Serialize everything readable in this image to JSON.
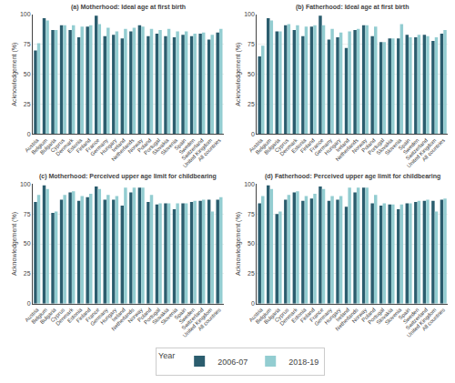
{
  "chart_data": [
    {
      "type": "bar",
      "title": "(a) Motherhood: Ideal age at first birth",
      "ylabel": "Acknowledgement (%)",
      "categories": [
        "Austria",
        "Belgium",
        "Bulgaria",
        "Cyprus",
        "Denmark",
        "Estonia",
        "Finland",
        "France",
        "Germany",
        "Hungary",
        "Ireland",
        "Netherlands",
        "Norway",
        "Poland",
        "Portugal",
        "Slovakia",
        "Slovenia",
        "Spain",
        "Sweden",
        "Switzerland",
        "United Kingdom",
        "All countries"
      ],
      "series": [
        {
          "name": "2006-07",
          "color": "#2b5d6e",
          "values": [
            70,
            97,
            87,
            91,
            87,
            81,
            90,
            99,
            82,
            83,
            80,
            86,
            91,
            82,
            84,
            82,
            81,
            83,
            82,
            84,
            79,
            85
          ]
        },
        {
          "name": "2018-19",
          "color": "#93cdd1",
          "values": [
            76,
            95,
            87,
            91,
            91,
            90,
            91,
            92,
            89,
            86,
            88,
            89,
            90,
            88,
            87,
            88,
            86,
            86,
            84,
            85,
            83,
            88
          ]
        }
      ],
      "ylim": [
        0,
        100
      ],
      "yticks": [
        0,
        25,
        50,
        75,
        100
      ],
      "grid": true
    },
    {
      "type": "bar",
      "title": "(b) Fatherhood: Ideal age at first birth",
      "ylabel": "Acknowledgement (%)",
      "categories": [
        "Austria",
        "Belgium",
        "Bulgaria",
        "Cyprus",
        "Denmark",
        "Estonia",
        "Finland",
        "France",
        "Germany",
        "Hungary",
        "Ireland",
        "Netherlands",
        "Norway",
        "Poland",
        "Portugal",
        "Slovakia",
        "Slovenia",
        "Spain",
        "Sweden",
        "Switzerland",
        "United Kingdom",
        "All countries"
      ],
      "series": [
        {
          "name": "2006-07",
          "color": "#2b5d6e",
          "values": [
            65,
            97,
            86,
            91,
            87,
            82,
            90,
            99,
            79,
            81,
            72,
            87,
            91,
            82,
            77,
            80,
            80,
            83,
            81,
            83,
            78,
            84
          ]
        },
        {
          "name": "2018-19",
          "color": "#93cdd1",
          "values": [
            74,
            95,
            86,
            92,
            91,
            90,
            91,
            91,
            88,
            85,
            86,
            88,
            91,
            90,
            77,
            80,
            92,
            81,
            83,
            82,
            81,
            87
          ]
        }
      ],
      "ylim": [
        0,
        100
      ],
      "yticks": [
        0,
        25,
        50,
        75,
        100
      ],
      "grid": true
    },
    {
      "type": "bar",
      "title": "(c) Motherhood: Perceived upper age limit for childbearing",
      "ylabel": "Acknowledgement (%)",
      "categories": [
        "Austria",
        "Belgium",
        "Bulgaria",
        "Cyprus",
        "Denmark",
        "Estonia",
        "Finland",
        "France",
        "Germany",
        "Hungary",
        "Ireland",
        "Netherlands",
        "Norway",
        "Poland",
        "Portugal",
        "Slovakia",
        "Slovenia",
        "Spain",
        "Sweden",
        "Switzerland",
        "United Kingdom",
        "All countries"
      ],
      "series": [
        {
          "name": "2006-07",
          "color": "#2b5d6e",
          "values": [
            85,
            99,
            76,
            87,
            93,
            86,
            89,
            98,
            87,
            87,
            82,
            93,
            97,
            85,
            83,
            84,
            79,
            84,
            85,
            86,
            87,
            87
          ]
        },
        {
          "name": "2018-19",
          "color": "#93cdd1",
          "values": [
            91,
            96,
            77,
            91,
            94,
            90,
            92,
            96,
            91,
            90,
            97,
            97,
            97,
            91,
            84,
            84,
            84,
            84,
            86,
            87,
            77,
            89
          ]
        }
      ],
      "ylim": [
        0,
        100
      ],
      "yticks": [
        0,
        25,
        50,
        75,
        100
      ],
      "grid": true
    },
    {
      "type": "bar",
      "title": "(d) Fatherhood: Perceived upper age limit for childbearing",
      "ylabel": "Acknowledgement (%)",
      "categories": [
        "Austria",
        "Belgium",
        "Bulgaria",
        "Cyprus",
        "Denmark",
        "Estonia",
        "Finland",
        "France",
        "Germany",
        "Hungary",
        "Ireland",
        "Netherlands",
        "Norway",
        "Poland",
        "Portugal",
        "Slovakia",
        "Slovenia",
        "Spain",
        "Sweden",
        "Switzerland",
        "United Kingdom",
        "All countries"
      ],
      "series": [
        {
          "name": "2006-07",
          "color": "#2b5d6e",
          "values": [
            84,
            99,
            75,
            87,
            93,
            86,
            88,
            98,
            86,
            87,
            81,
            93,
            97,
            84,
            82,
            83,
            79,
            84,
            85,
            86,
            86,
            87
          ]
        },
        {
          "name": "2018-19",
          "color": "#93cdd1",
          "values": [
            90,
            96,
            77,
            91,
            94,
            90,
            92,
            96,
            90,
            90,
            97,
            97,
            97,
            91,
            84,
            83,
            83,
            84,
            86,
            87,
            77,
            88
          ]
        }
      ],
      "ylim": [
        0,
        100
      ],
      "yticks": [
        0,
        25,
        50,
        75,
        100
      ],
      "grid": true
    }
  ],
  "legend": "bottom",
  "legend_title": "Year"
}
